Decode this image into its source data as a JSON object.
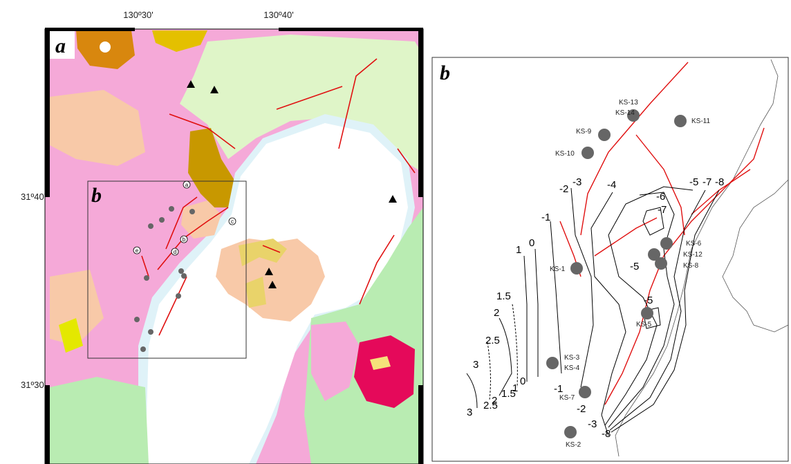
{
  "panel_a": {
    "label": "a",
    "inset_label": "b",
    "lon_labels": [
      "130º30'",
      "130º40'"
    ],
    "lat_labels": [
      "31º40'",
      "31º30'"
    ],
    "site_labels": [
      "a",
      "b",
      "c",
      "d",
      "e"
    ]
  },
  "panel_b": {
    "label": "b",
    "wells": [
      "KS-13",
      "KS-14",
      "KS-11",
      "KS-9",
      "KS-10",
      "KS-1",
      "KS-6",
      "KS-12",
      "KS-8",
      "KS-5",
      "KS-3",
      "KS-4",
      "KS-7",
      "KS-2"
    ],
    "contour_labels": [
      "-2",
      "-3",
      "-4",
      "-5",
      "-7",
      "-8",
      "-6",
      "-7",
      "-1",
      "0",
      "1",
      "-5",
      "1.5",
      "2",
      "2.5",
      "3",
      "-5",
      "3",
      "2.5",
      "2",
      "1.5",
      "1",
      "0",
      "-1",
      "-2",
      "-3",
      "-8"
    ]
  }
}
